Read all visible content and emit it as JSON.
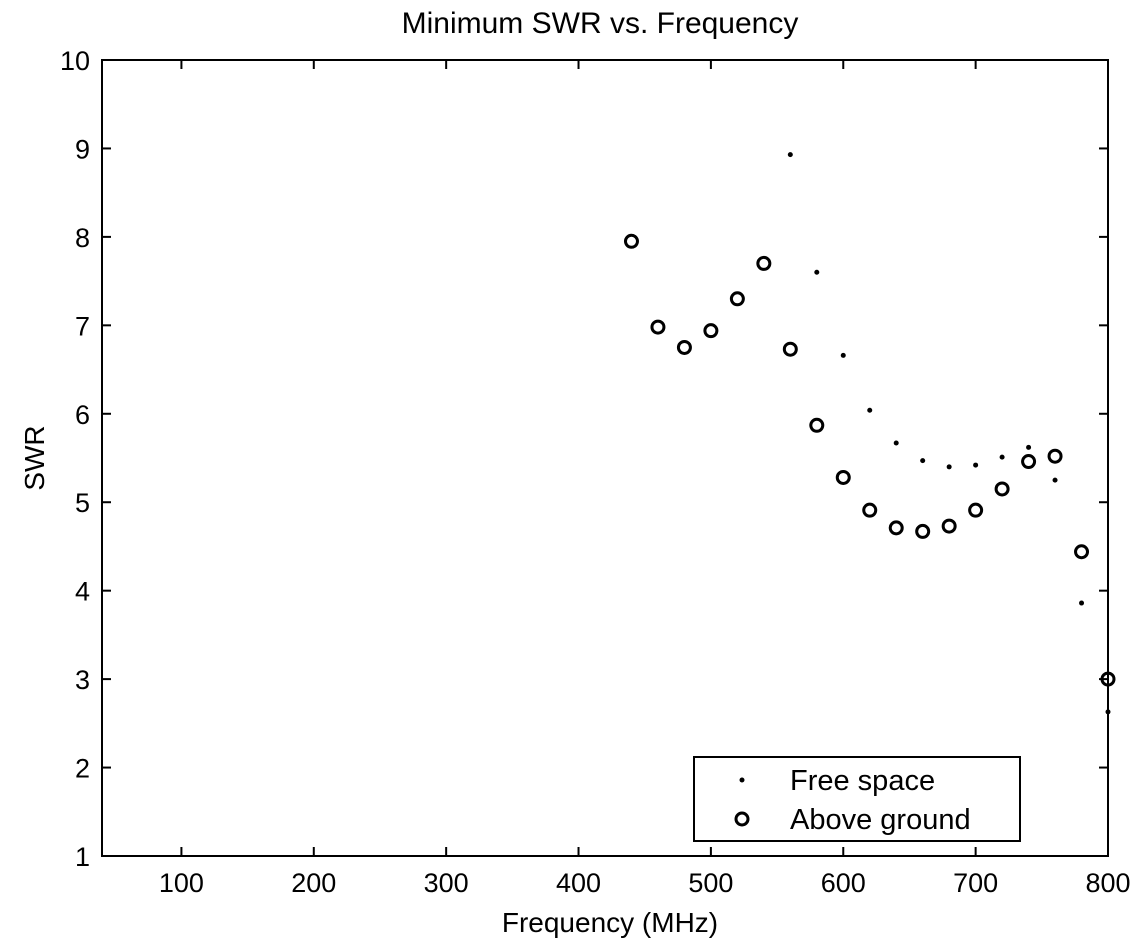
{
  "chart_data": {
    "type": "scatter",
    "title": "Minimum SWR vs. Frequency",
    "xlabel": "Frequency (MHz)",
    "ylabel": "SWR",
    "xlim": [
      40,
      800
    ],
    "ylim": [
      1,
      10
    ],
    "xticks": [
      100,
      200,
      300,
      400,
      500,
      600,
      700,
      800
    ],
    "yticks": [
      1,
      2,
      3,
      4,
      5,
      6,
      7,
      8,
      9,
      10
    ],
    "grid": false,
    "legend_position": "bottom-right",
    "series": [
      {
        "name": "Free space",
        "marker": "dot",
        "points": [
          {
            "x": 560,
            "y": 8.93
          },
          {
            "x": 580,
            "y": 7.6
          },
          {
            "x": 600,
            "y": 6.66
          },
          {
            "x": 620,
            "y": 6.04
          },
          {
            "x": 640,
            "y": 5.67
          },
          {
            "x": 660,
            "y": 5.47
          },
          {
            "x": 680,
            "y": 5.4
          },
          {
            "x": 700,
            "y": 5.42
          },
          {
            "x": 720,
            "y": 5.51
          },
          {
            "x": 740,
            "y": 5.62
          },
          {
            "x": 760,
            "y": 5.25
          },
          {
            "x": 780,
            "y": 3.86
          },
          {
            "x": 800,
            "y": 2.63
          }
        ]
      },
      {
        "name": "Above ground",
        "marker": "circle",
        "points": [
          {
            "x": 440,
            "y": 7.95
          },
          {
            "x": 460,
            "y": 6.98
          },
          {
            "x": 480,
            "y": 6.75
          },
          {
            "x": 500,
            "y": 6.94
          },
          {
            "x": 520,
            "y": 7.3
          },
          {
            "x": 540,
            "y": 7.7
          },
          {
            "x": 560,
            "y": 6.73
          },
          {
            "x": 580,
            "y": 5.87
          },
          {
            "x": 600,
            "y": 5.28
          },
          {
            "x": 620,
            "y": 4.91
          },
          {
            "x": 640,
            "y": 4.71
          },
          {
            "x": 660,
            "y": 4.67
          },
          {
            "x": 680,
            "y": 4.73
          },
          {
            "x": 700,
            "y": 4.91
          },
          {
            "x": 720,
            "y": 5.15
          },
          {
            "x": 740,
            "y": 5.46
          },
          {
            "x": 760,
            "y": 5.52
          },
          {
            "x": 780,
            "y": 4.44
          },
          {
            "x": 800,
            "y": 3.0
          }
        ]
      }
    ]
  }
}
